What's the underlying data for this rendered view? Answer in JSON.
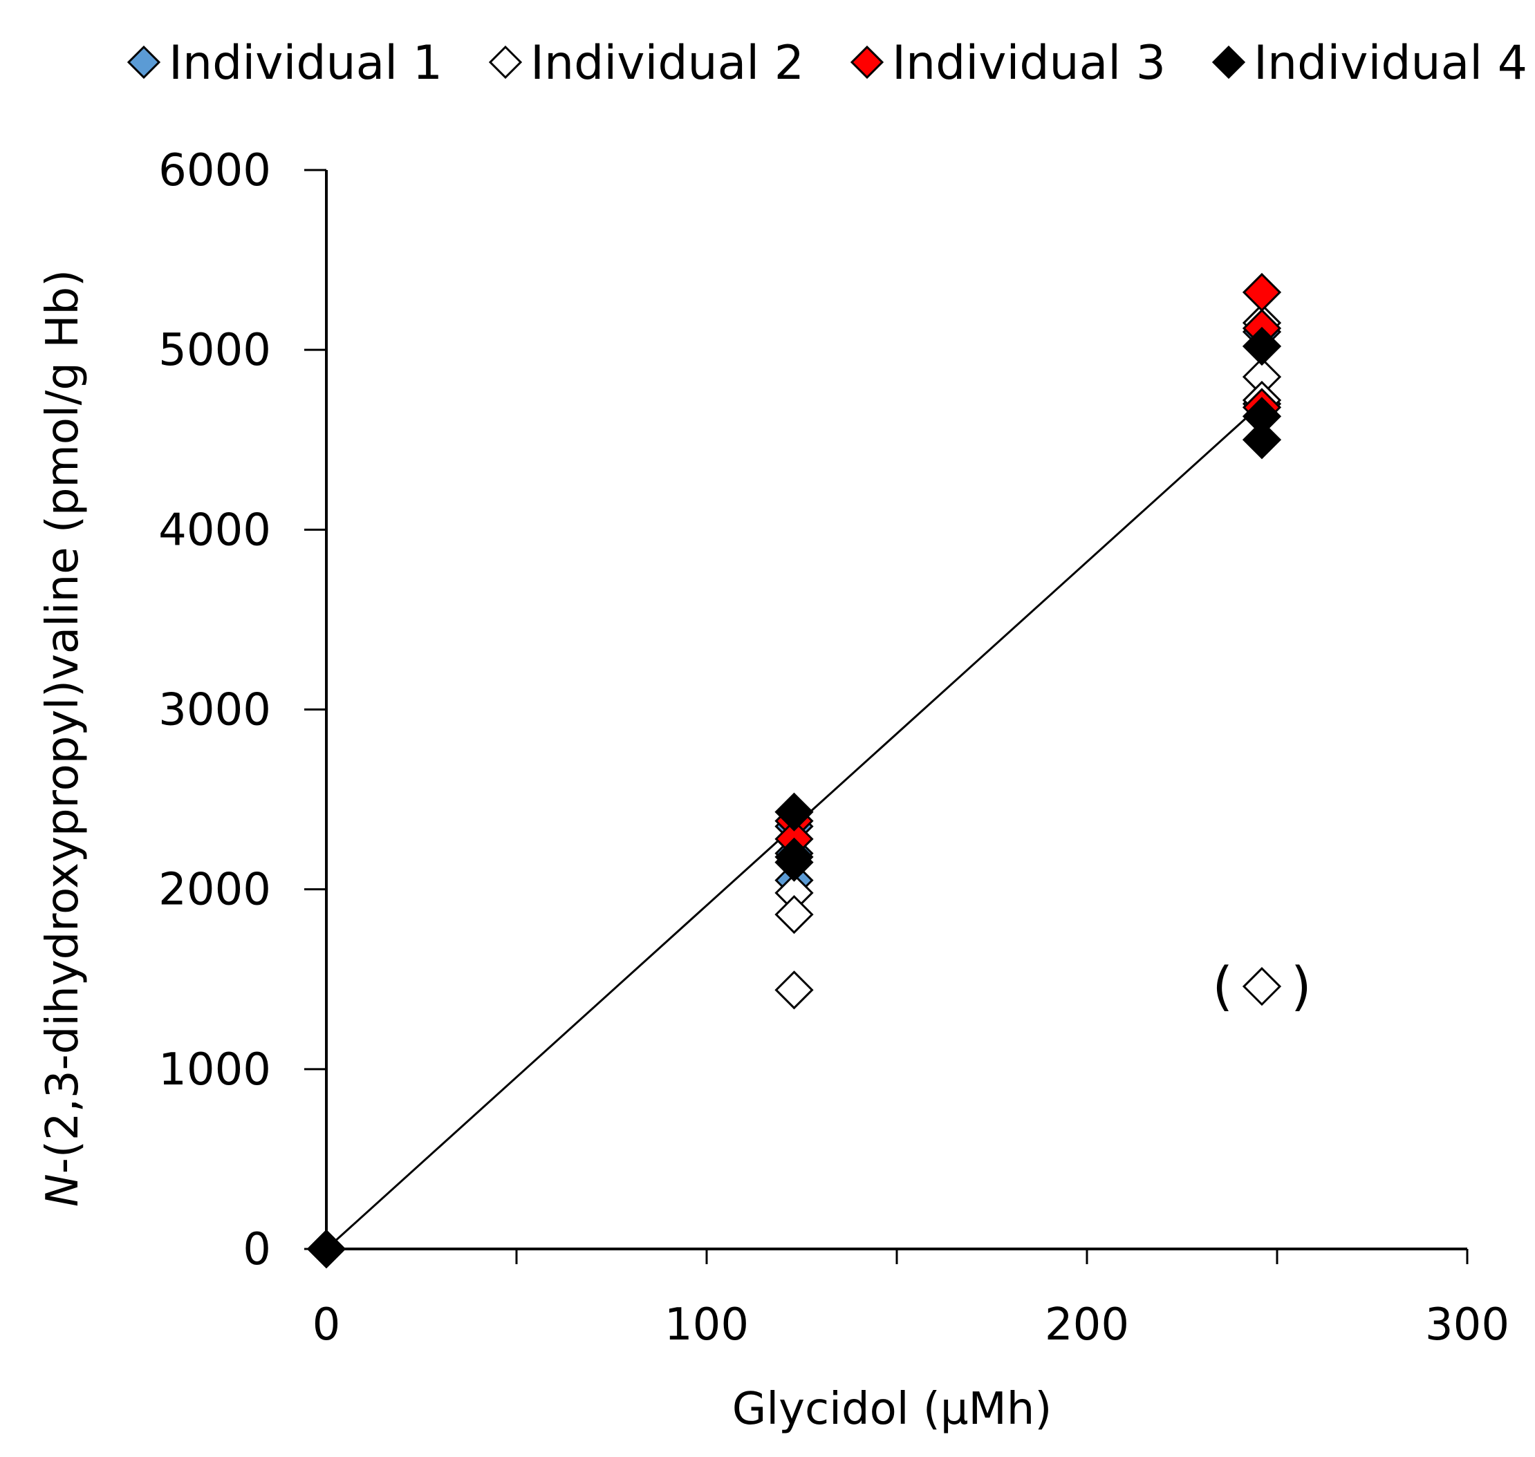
{
  "chart_data": {
    "type": "scatter",
    "title": "",
    "xlabel": "Glycidol (µMh)",
    "ylabel_italic_prefix": "N",
    "ylabel_rest": "-(2,3-dihydroxypropyl)valine (pmol/g Hb)",
    "xlim": [
      0,
      300
    ],
    "ylim": [
      0,
      6000
    ],
    "x_ticks": [
      0,
      100,
      200,
      300
    ],
    "x_tick_labels": [
      "0",
      "100",
      "200",
      "300"
    ],
    "x_minor_ticks": [
      50,
      150,
      250
    ],
    "y_ticks": [
      0,
      1000,
      2000,
      3000,
      4000,
      5000,
      6000
    ],
    "y_tick_labels": [
      "0",
      "1000",
      "2000",
      "3000",
      "4000",
      "5000",
      "6000"
    ],
    "grid": false,
    "legend_position": "top",
    "series": [
      {
        "name": "Individual 1",
        "color": "#5b9bd5",
        "stroke": "#000000",
        "points": [
          [
            0,
            0
          ],
          [
            123,
            2350
          ],
          [
            123,
            2050
          ],
          [
            123,
            2200
          ],
          [
            246,
            5100
          ],
          [
            246,
            4700
          ]
        ]
      },
      {
        "name": "Individual 2",
        "color": "#ffffff",
        "stroke": "#000000",
        "points": [
          [
            0,
            0
          ],
          [
            123,
            1980
          ],
          [
            123,
            1860
          ],
          [
            123,
            1440
          ],
          [
            246,
            5150
          ],
          [
            246,
            4850
          ],
          [
            246,
            4720
          ]
        ]
      },
      {
        "name": "Individual 3",
        "color": "#ff0000",
        "stroke": "#000000",
        "points": [
          [
            0,
            0
          ],
          [
            123,
            2380
          ],
          [
            123,
            2280
          ],
          [
            246,
            5320
          ],
          [
            246,
            5120
          ],
          [
            246,
            4680
          ]
        ]
      },
      {
        "name": "Individual 4",
        "color": "#000000",
        "stroke": "#000000",
        "points": [
          [
            0,
            0
          ],
          [
            123,
            2430
          ],
          [
            123,
            2180
          ],
          [
            123,
            2150
          ],
          [
            246,
            5020
          ],
          [
            246,
            4630
          ],
          [
            246,
            4500
          ]
        ]
      }
    ],
    "excluded_points": [
      {
        "series": "Individual 2",
        "x": 246,
        "y": 1460,
        "label_open": "(",
        "label_close": ")"
      }
    ],
    "regression_line": {
      "x": [
        0,
        246
      ],
      "y": [
        0,
        4700
      ],
      "color": "#000000"
    }
  }
}
